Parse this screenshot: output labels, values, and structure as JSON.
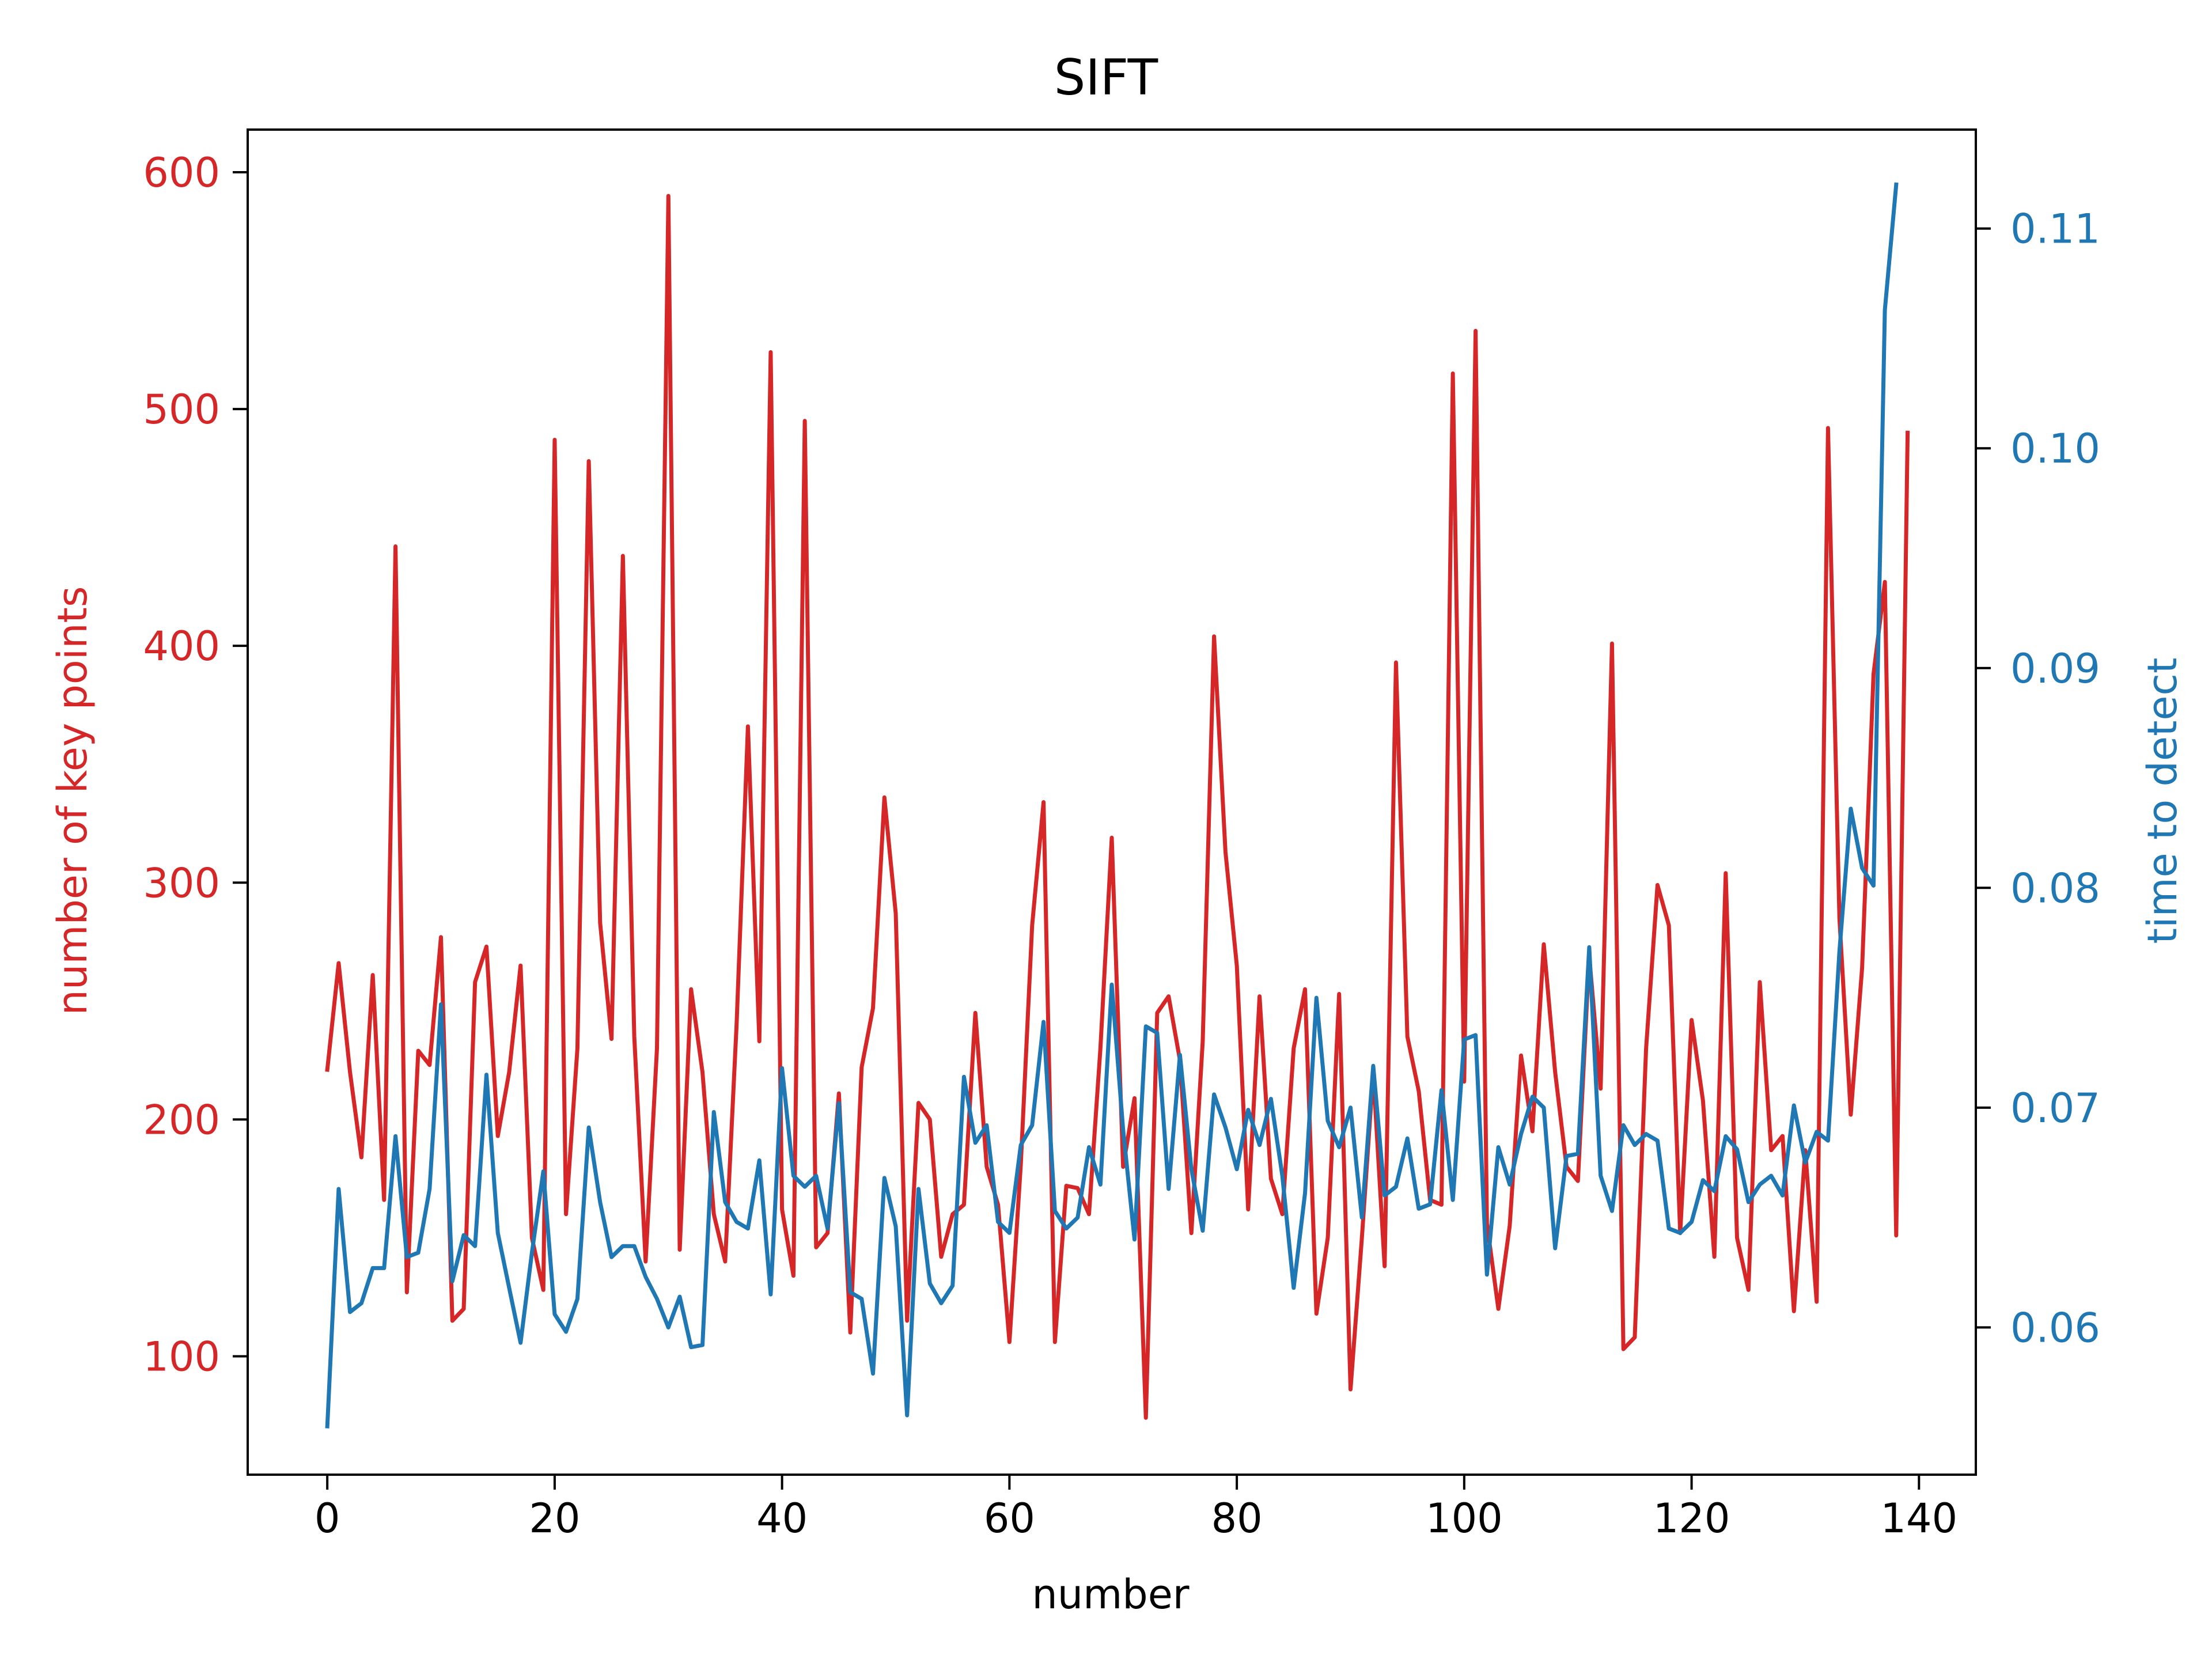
{
  "chart_data": {
    "type": "line",
    "title": "SIFT",
    "xlabel": "number",
    "ylabel_left": "number of key points",
    "ylabel_right": "time to detect",
    "xlim": [
      -7,
      145
    ],
    "ylim_left": [
      50,
      618
    ],
    "ylim_right": [
      0.0533,
      0.1145
    ],
    "x_ticks": [
      0,
      20,
      40,
      60,
      80,
      100,
      120,
      140
    ],
    "y_ticks_left": [
      100,
      200,
      300,
      400,
      500,
      600
    ],
    "y_ticks_right": [
      0.06,
      0.07,
      0.08,
      0.09,
      0.1,
      0.11
    ],
    "y_tick_labels_right": [
      "0.06",
      "0.07",
      "0.08",
      "0.09",
      "0.10",
      "0.11"
    ],
    "grid": false,
    "series": [
      {
        "axis": "left",
        "color": "#d62728",
        "values": [
          221,
          266,
          220,
          184,
          261,
          166,
          442,
          127,
          229,
          223,
          277,
          115,
          120,
          258,
          273,
          193,
          220,
          265,
          150,
          128,
          487,
          160,
          230,
          478,
          283,
          234,
          438,
          235,
          140,
          230,
          590,
          145,
          255,
          220,
          160,
          140,
          240,
          366,
          233,
          524,
          162,
          134,
          495,
          146,
          152,
          211,
          110,
          222,
          247,
          336,
          287,
          115,
          207,
          200,
          142,
          160,
          164,
          245,
          180,
          164,
          106,
          181,
          282,
          334,
          106,
          172,
          171,
          160,
          230,
          319,
          180,
          209,
          74,
          245,
          252,
          225,
          152,
          233,
          404,
          313,
          265,
          162,
          252,
          175,
          160,
          230,
          255,
          118,
          150,
          253,
          86,
          150,
          220,
          138,
          393,
          235,
          212,
          166,
          164,
          515,
          216,
          533,
          156,
          120,
          155,
          227,
          195,
          274,
          220,
          180,
          174,
          269,
          213,
          401,
          103,
          108,
          230,
          299,
          282,
          152,
          242,
          208,
          142,
          304,
          150,
          128,
          258,
          187,
          193,
          119,
          187,
          123,
          492,
          285,
          202,
          264,
          388,
          427,
          151,
          490
        ]
      },
      {
        "axis": "right",
        "color": "#1f77b4",
        "values": [
          0.0555,
          0.0663,
          0.0607,
          0.0611,
          0.0627,
          0.0627,
          0.0687,
          0.0632,
          0.0634,
          0.0663,
          0.0747,
          0.0621,
          0.0642,
          0.0637,
          0.0715,
          0.0643,
          0.0618,
          0.0593,
          0.0634,
          0.0671,
          0.0606,
          0.0598,
          0.0613,
          0.0691,
          0.0657,
          0.0632,
          0.0637,
          0.0637,
          0.0623,
          0.0613,
          0.06,
          0.0614,
          0.0591,
          0.0592,
          0.0698,
          0.0657,
          0.0648,
          0.0645,
          0.0676,
          0.0615,
          0.0718,
          0.0669,
          0.0664,
          0.0669,
          0.0645,
          0.0702,
          0.0616,
          0.0613,
          0.0579,
          0.0668,
          0.0646,
          0.056,
          0.0663,
          0.062,
          0.0611,
          0.0619,
          0.0714,
          0.0684,
          0.0692,
          0.0648,
          0.0643,
          0.0683,
          0.0692,
          0.0739,
          0.0653,
          0.0645,
          0.065,
          0.0682,
          0.0665,
          0.0756,
          0.069,
          0.064,
          0.0737,
          0.0734,
          0.0663,
          0.0724,
          0.0672,
          0.0644,
          0.0706,
          0.0691,
          0.0672,
          0.0699,
          0.0683,
          0.0704,
          0.0669,
          0.0618,
          0.0661,
          0.075,
          0.0694,
          0.0682,
          0.07,
          0.065,
          0.0719,
          0.066,
          0.0664,
          0.0686,
          0.0654,
          0.0656,
          0.0708,
          0.0658,
          0.0731,
          0.0733,
          0.0624,
          0.0682,
          0.0665,
          0.0688,
          0.0705,
          0.07,
          0.0636,
          0.0678,
          0.0679,
          0.0773,
          0.0669,
          0.0653,
          0.0692,
          0.0683,
          0.0688,
          0.0685,
          0.0645,
          0.0643,
          0.0648,
          0.0667,
          0.0662,
          0.0687,
          0.0681,
          0.0657,
          0.0665,
          0.0669,
          0.066,
          0.0701,
          0.0675,
          0.0689,
          0.0685,
          0.0771,
          0.0836,
          0.0809,
          0.0801,
          0.1063,
          0.112
        ]
      }
    ]
  }
}
